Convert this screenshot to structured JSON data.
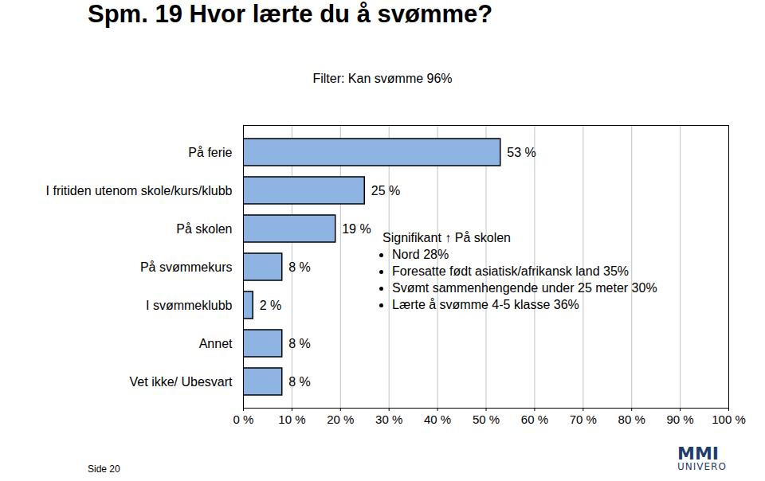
{
  "chart_data": {
    "type": "bar",
    "orientation": "horizontal",
    "title": "Spm. 19 Hvor lærte du å svømme?",
    "subtitle": "Filter: Kan svømme 96%",
    "categories": [
      "På ferie",
      "I fritiden utenom skole/kurs/klubb",
      "På skolen",
      "På svømmekurs",
      "I svømmeklubb",
      "Annet",
      "Vet ikke/ Ubesvart"
    ],
    "values": [
      53,
      25,
      19,
      8,
      2,
      8,
      8
    ],
    "value_labels": [
      "53 %",
      "25 %",
      "19 %",
      "8 %",
      "2 %",
      "8 %",
      "8 %"
    ],
    "data_labels": true,
    "color": "#8db4e2",
    "grid": true,
    "xlim": [
      0,
      100
    ],
    "xticks": [
      {
        "value": 0,
        "label": "0 %"
      },
      {
        "value": 10,
        "label": "10 %"
      },
      {
        "value": 20,
        "label": "20 %"
      },
      {
        "value": 30,
        "label": "30 %"
      },
      {
        "value": 40,
        "label": "40 %"
      },
      {
        "value": 50,
        "label": "50 %"
      },
      {
        "value": 60,
        "label": "60 %"
      },
      {
        "value": 70,
        "label": "70 %"
      },
      {
        "value": 80,
        "label": "80 %"
      },
      {
        "value": 90,
        "label": "90 %"
      },
      {
        "value": 100,
        "label": "100 %"
      }
    ],
    "annotation": {
      "title": "Signifikant ↑ På skolen",
      "items": [
        "Nord 28%",
        "Foresatte født asiatisk/afrikansk land 35%",
        "Svømt sammenhengende under 25 meter 30%",
        "Lærte å svømme 4-5 klasse 36%"
      ]
    },
    "footer": "Side 20",
    "logo": [
      "MMI",
      "UNIVERO"
    ]
  }
}
